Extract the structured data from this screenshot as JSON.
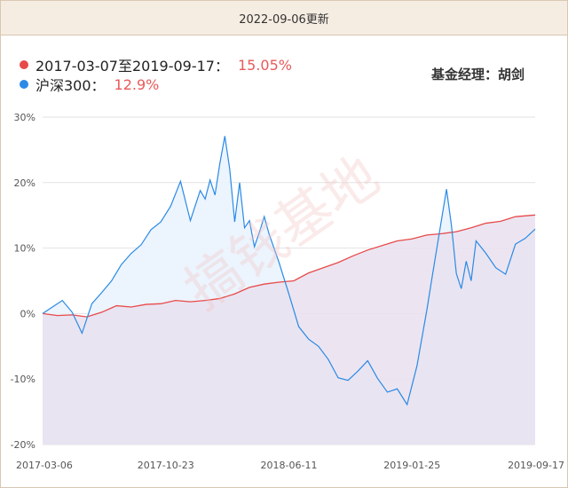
{
  "header": {
    "date_label": "2022-09-06更新"
  },
  "legend": {
    "fund": {
      "label": "2017-03-07至2019-09-17：",
      "return": "15.05%",
      "color": "#e84a4a"
    },
    "index": {
      "label": "沪深300：",
      "return": "12.9%",
      "color": "#2a8ae6"
    }
  },
  "manager": {
    "label": "基金经理：胡剑"
  },
  "watermark": "搞钱基地",
  "chart_data": {
    "type": "area",
    "ylim": [
      -20,
      30
    ],
    "yticks": [
      "30%",
      "20%",
      "10%",
      "0%",
      "-10%",
      "-20%"
    ],
    "ytick_values": [
      30,
      20,
      10,
      0,
      -10,
      -20
    ],
    "xticks": [
      "2017-03-06",
      "2017-10-23",
      "2018-06-11",
      "2019-01-25",
      "2019-09-17"
    ],
    "xtick_values": [
      0,
      0.25,
      0.5,
      0.75,
      1.0
    ],
    "grid": true,
    "series": [
      {
        "name": "2017-03-07至2019-09-17",
        "color": "#e84a4a",
        "fill": "#e9e0ee",
        "x": [
          0,
          0.03,
          0.06,
          0.09,
          0.12,
          0.15,
          0.18,
          0.21,
          0.24,
          0.27,
          0.3,
          0.33,
          0.36,
          0.39,
          0.42,
          0.45,
          0.48,
          0.51,
          0.54,
          0.57,
          0.6,
          0.63,
          0.66,
          0.69,
          0.72,
          0.75,
          0.78,
          0.81,
          0.84,
          0.87,
          0.9,
          0.93,
          0.96,
          1.0
        ],
        "y": [
          0,
          -0.3,
          -0.2,
          -0.5,
          0.2,
          1.2,
          1.0,
          1.4,
          1.5,
          2.0,
          1.8,
          2.0,
          2.3,
          3.0,
          4.0,
          4.5,
          4.8,
          5.0,
          6.2,
          7.0,
          7.8,
          8.8,
          9.7,
          10.4,
          11.1,
          11.4,
          12.0,
          12.2,
          12.5,
          13.1,
          13.8,
          14.1,
          14.8,
          15.05
        ]
      },
      {
        "name": "沪深300",
        "color": "#2a8ae6",
        "fill": "#eaf3fd",
        "x": [
          0,
          0.02,
          0.04,
          0.06,
          0.08,
          0.1,
          0.12,
          0.14,
          0.16,
          0.18,
          0.2,
          0.22,
          0.24,
          0.26,
          0.28,
          0.3,
          0.32,
          0.33,
          0.34,
          0.35,
          0.36,
          0.37,
          0.38,
          0.39,
          0.4,
          0.41,
          0.42,
          0.43,
          0.44,
          0.45,
          0.46,
          0.48,
          0.5,
          0.52,
          0.54,
          0.56,
          0.58,
          0.6,
          0.62,
          0.64,
          0.66,
          0.68,
          0.7,
          0.72,
          0.74,
          0.76,
          0.78,
          0.79,
          0.8,
          0.81,
          0.82,
          0.83,
          0.84,
          0.85,
          0.86,
          0.87,
          0.88,
          0.9,
          0.92,
          0.94,
          0.96,
          0.98,
          1.0
        ],
        "y": [
          0,
          1.0,
          2.0,
          0.2,
          -3.0,
          1.5,
          3.2,
          5.0,
          7.5,
          9.2,
          10.5,
          12.8,
          14.0,
          16.4,
          20.2,
          14.2,
          18.8,
          17.5,
          20.4,
          18.1,
          23.0,
          27.1,
          22.0,
          14.0,
          20.0,
          13.1,
          14.2,
          10.2,
          12.4,
          14.8,
          12.1,
          7.8,
          3.0,
          -2.0,
          -3.9,
          -5.0,
          -7.0,
          -9.8,
          -10.2,
          -8.8,
          -7.2,
          -9.9,
          -12.0,
          -11.5,
          -13.9,
          -8.0,
          0.5,
          5.2,
          9.8,
          14.4,
          19.0,
          13.5,
          6.1,
          3.8,
          8.0,
          5.0,
          11.1,
          9.2,
          7.0,
          6.0,
          10.6,
          11.5,
          12.9
        ]
      }
    ]
  }
}
